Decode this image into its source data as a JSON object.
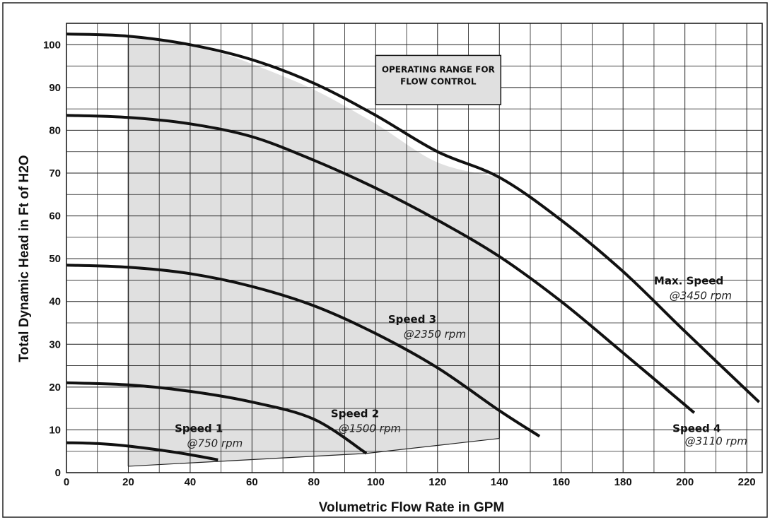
{
  "chart_data": {
    "type": "line",
    "title": "",
    "xlabel": "Volumetric Flow Rate in GPM",
    "ylabel": "Total Dynamic Head in Ft of H2O",
    "xlim": [
      0,
      225
    ],
    "ylim": [
      0,
      105
    ],
    "x_ticks": [
      0,
      20,
      40,
      60,
      80,
      100,
      120,
      140,
      160,
      180,
      200,
      220
    ],
    "y_ticks": [
      0,
      10,
      20,
      30,
      40,
      50,
      60,
      70,
      80,
      90,
      100
    ],
    "grid": true,
    "annotation_box": [
      "OPERATING RANGE FOR",
      "FLOW CONTROL"
    ],
    "operating_range": {
      "fill_color": "#e0e0e0",
      "polygon": [
        [
          20,
          1.5
        ],
        [
          20,
          102
        ],
        [
          35,
          100.5
        ],
        [
          50,
          98
        ],
        [
          60,
          95.5
        ],
        [
          80,
          89.5
        ],
        [
          100,
          81.5
        ],
        [
          120,
          72.5
        ],
        [
          140,
          69
        ],
        [
          140,
          8
        ],
        [
          97,
          4.5
        ],
        [
          20,
          1.5
        ]
      ]
    },
    "series": [
      {
        "name": "Max. Speed",
        "rpm_label": "@3450 rpm",
        "x": [
          0,
          20,
          40,
          60,
          80,
          100,
          120,
          140,
          160,
          180,
          200,
          224
        ],
        "y": [
          102.5,
          102,
          100,
          96.5,
          91,
          83.5,
          75,
          69,
          59,
          47,
          33,
          16.5
        ]
      },
      {
        "name": "Speed 4",
        "rpm_label": "@3110 rpm",
        "x": [
          0,
          20,
          40,
          60,
          80,
          100,
          120,
          140,
          160,
          180,
          203
        ],
        "y": [
          83.5,
          83,
          81.5,
          78.5,
          73,
          66.5,
          59,
          50.5,
          40,
          28,
          14
        ]
      },
      {
        "name": "Speed 3",
        "rpm_label": "@2350 rpm",
        "x": [
          0,
          20,
          40,
          60,
          80,
          100,
          120,
          140,
          153
        ],
        "y": [
          48.5,
          48,
          46.5,
          43.5,
          39,
          32.5,
          24.5,
          14.5,
          8.5
        ]
      },
      {
        "name": "Speed 2",
        "rpm_label": "@1500 rpm",
        "x": [
          0,
          20,
          40,
          60,
          80,
          97
        ],
        "y": [
          21,
          20.5,
          19,
          16.5,
          12.5,
          4.5
        ]
      },
      {
        "name": "Speed 1",
        "rpm_label": "@750 rpm",
        "x": [
          0,
          10,
          20,
          30,
          40,
          49
        ],
        "y": [
          7,
          6.8,
          6.2,
          5.3,
          4.2,
          3
        ]
      }
    ],
    "colors": {
      "curve": "#111111",
      "region": "#e0e0e0",
      "grid": "#222222"
    }
  }
}
